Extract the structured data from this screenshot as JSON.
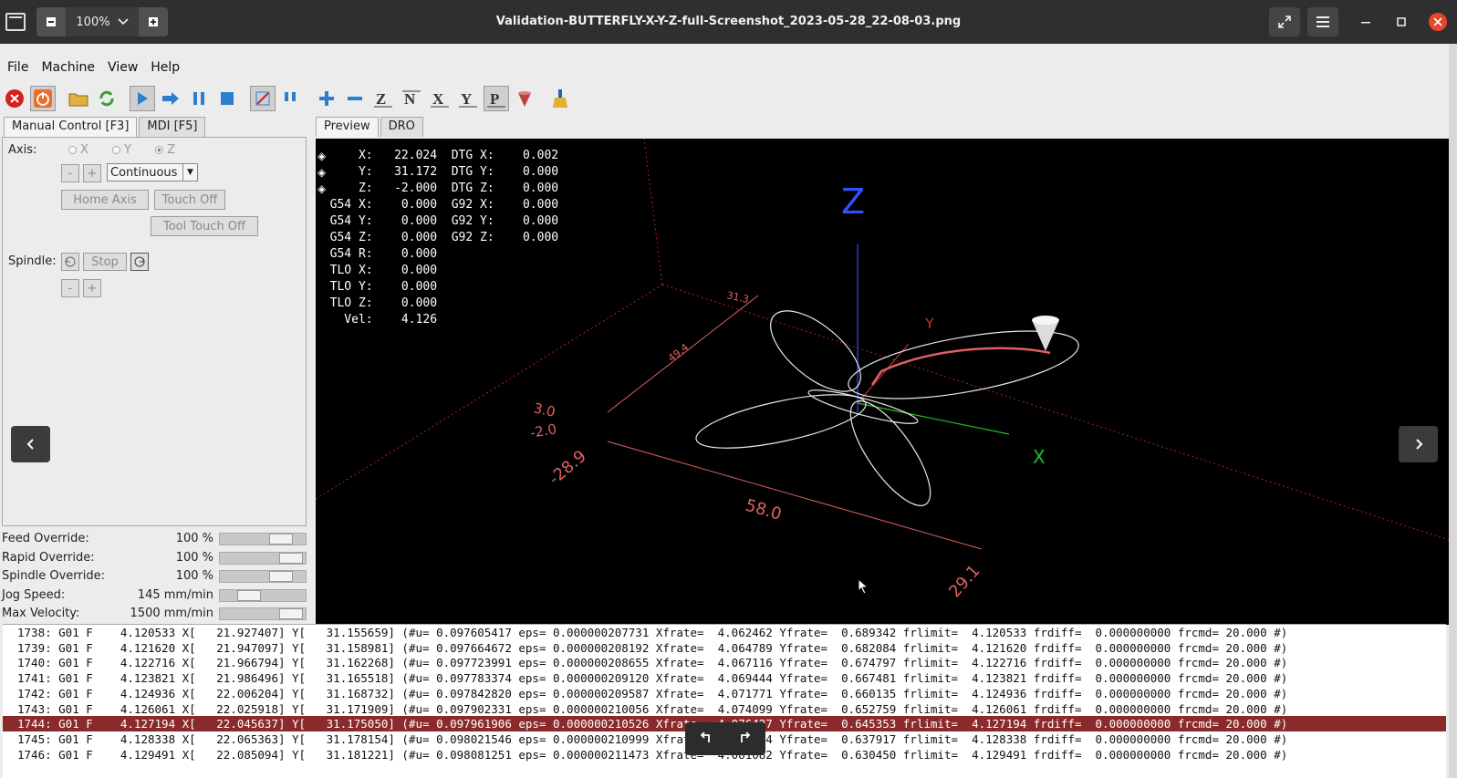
{
  "viewer": {
    "title": "Validation-BUTTERFLY-X-Y-Z-full-Screenshot_2023-05-28_22-08-03.png",
    "zoom": "100%"
  },
  "menu": [
    "File",
    "Machine",
    "View",
    "Help"
  ],
  "left_tabs": [
    "Manual Control [F3]",
    "MDI [F5]"
  ],
  "right_tabs": [
    "Preview",
    "DRO"
  ],
  "manual": {
    "axis_label": "Axis:",
    "axes": [
      "X",
      "Y",
      "Z"
    ],
    "selected_axis": "Z",
    "minus": "-",
    "plus": "+",
    "jog_mode": "Continuous",
    "home_axis": "Home Axis",
    "touch_off": "Touch Off",
    "tool_touch_off": "Tool Touch Off",
    "spindle_label": "Spindle:",
    "stop": "Stop"
  },
  "overrides": [
    {
      "label": "Feed Override:",
      "value": "100 %",
      "level": 0.8
    },
    {
      "label": "Rapid Override:",
      "value": "100 %",
      "level": 0.95
    },
    {
      "label": "Spindle Override:",
      "value": "100 %",
      "level": 0.8
    },
    {
      "label": "Jog Speed:",
      "value": "145 mm/min",
      "level": 0.28
    },
    {
      "label": "Max Velocity:",
      "value": "1500 mm/min",
      "level": 0.95
    }
  ],
  "dro_lines": [
    "      X:   22.024  DTG X:    0.002",
    "      Y:   31.172  DTG Y:    0.000",
    "      Z:   -2.000  DTG Z:    0.000",
    "  G54 X:    0.000  G92 X:    0.000",
    "  G54 Y:    0.000  G92 Y:    0.000",
    "  G54 Z:    0.000  G92 Z:    0.000",
    "  G54 R:    0.000",
    "  TLO X:    0.000",
    "  TLO Y:    0.000",
    "  TLO Z:    0.000",
    "    Vel:    4.126"
  ],
  "plot_labels": {
    "z_axis": "Z",
    "y_axis": "Y",
    "x_axis": "X",
    "dim_31": "31.3",
    "dim_49": "49.4",
    "dim_3": "3.0",
    "dim_minus2": "-2.0",
    "dim_minus28": "-28.9",
    "dim_58": "58.0",
    "dim_29": "29.1"
  },
  "log_lines": [
    "1738: G01 F    4.120533 X[   21.927407] Y[   31.155659] (#u= 0.097605417 eps= 0.000000207731 Xfrate=  4.062462 Yfrate=  0.689342 frlimit=  4.120533 frdiff=  0.000000000 frcmd= 20.000 #)",
    "1739: G01 F    4.121620 X[   21.947097] Y[   31.158981] (#u= 0.097664672 eps= 0.000000208192 Xfrate=  4.064789 Yfrate=  0.682084 frlimit=  4.121620 frdiff=  0.000000000 frcmd= 20.000 #)",
    "1740: G01 F    4.122716 X[   21.966794] Y[   31.162268] (#u= 0.097723991 eps= 0.000000208655 Xfrate=  4.067116 Yfrate=  0.674797 frlimit=  4.122716 frdiff=  0.000000000 frcmd= 20.000 #)",
    "1741: G01 F    4.123821 X[   21.986496] Y[   31.165518] (#u= 0.097783374 eps= 0.000000209120 Xfrate=  4.069444 Yfrate=  0.667481 frlimit=  4.123821 frdiff=  0.000000000 frcmd= 20.000 #)",
    "1742: G01 F    4.124936 X[   22.006204] Y[   31.168732] (#u= 0.097842820 eps= 0.000000209587 Xfrate=  4.071771 Yfrate=  0.660135 frlimit=  4.124936 frdiff=  0.000000000 frcmd= 20.000 #)",
    "1743: G01 F    4.126061 X[   22.025918] Y[   31.171909] (#u= 0.097902331 eps= 0.000000210056 Xfrate=  4.074099 Yfrate=  0.652759 frlimit=  4.126061 frdiff=  0.000000000 frcmd= 20.000 #)",
    "1744: G01 F    4.127194 X[   22.045637] Y[   31.175050] (#u= 0.097961906 eps= 0.000000210526 Xfrate=  4.076427 Yfrate=  0.645353 frlimit=  4.127194 frdiff=  0.000000000 frcmd= 20.000 #)",
    "1745: G01 F    4.128338 X[   22.065363] Y[   31.178154] (#u= 0.098021546 eps= 0.000000210999 Xfrate=  4.078754 Yfrate=  0.637917 frlimit=  4.128338 frdiff=  0.000000000 frcmd= 20.000 #)",
    "1746: G01 F    4.129491 X[   22.085094] Y[   31.181221] (#u= 0.098081251 eps= 0.000000211473 Xfrate=  4.081082 Yfrate=  0.630450 frlimit=  4.129491 frdiff=  0.000000000 frcmd= 20.000 #)"
  ],
  "active_log_line": 1744
}
